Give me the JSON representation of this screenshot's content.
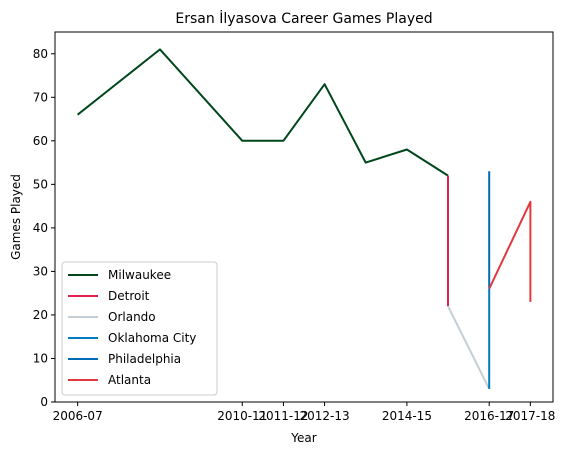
{
  "chart_data": {
    "type": "line",
    "title": "Ersan İlyasova Career Games Played",
    "xlabel": "Year",
    "ylabel": "Games Played",
    "x_ticks": [
      "2006-07",
      "2010-11",
      "2011-12",
      "2012-13",
      "2014-15",
      "2016-17",
      "2017-18"
    ],
    "ylim": [
      0,
      85
    ],
    "y_ticks": [
      0,
      10,
      20,
      30,
      40,
      50,
      60,
      70,
      80
    ],
    "grid": false,
    "legend_position": "lower-left",
    "series": [
      {
        "name": "Milwaukee",
        "color": "#00471b",
        "points": [
          {
            "x": "2006-07",
            "y": 66
          },
          {
            "x": "2008-09",
            "y": 81
          },
          {
            "x": "2010-11",
            "y": 60
          },
          {
            "x": "2011-12",
            "y": 60
          },
          {
            "x": "2012-13",
            "y": 73
          },
          {
            "x": "2013-14",
            "y": 55
          },
          {
            "x": "2014-15",
            "y": 58
          },
          {
            "x": "2015-16",
            "y": 52
          }
        ]
      },
      {
        "name": "Detroit",
        "color": "#e0234e",
        "points": [
          {
            "x": "2015-16",
            "y": 52
          },
          {
            "x": "2015-16",
            "y": 22
          }
        ]
      },
      {
        "name": "Orlando",
        "color": "#c4ced4",
        "points": [
          {
            "x": "2015-16",
            "y": 22
          },
          {
            "x": "2016-17",
            "y": 3
          }
        ]
      },
      {
        "name": "Oklahoma City",
        "color": "#007ac1",
        "points": [
          {
            "x": "2016-17",
            "y": 3
          },
          {
            "x": "2016-17",
            "y": 26
          }
        ]
      },
      {
        "name": "Philadelphia",
        "color": "#006bb6",
        "points": [
          {
            "x": "2016-17",
            "y": 53
          },
          {
            "x": "2016-17",
            "y": 26
          }
        ]
      },
      {
        "name": "Atlanta",
        "color": "#e03a3e",
        "points": [
          {
            "x": "2016-17",
            "y": 26
          },
          {
            "x": "2017-18",
            "y": 46
          },
          {
            "x": "2017-18",
            "y": 23
          }
        ]
      }
    ]
  }
}
